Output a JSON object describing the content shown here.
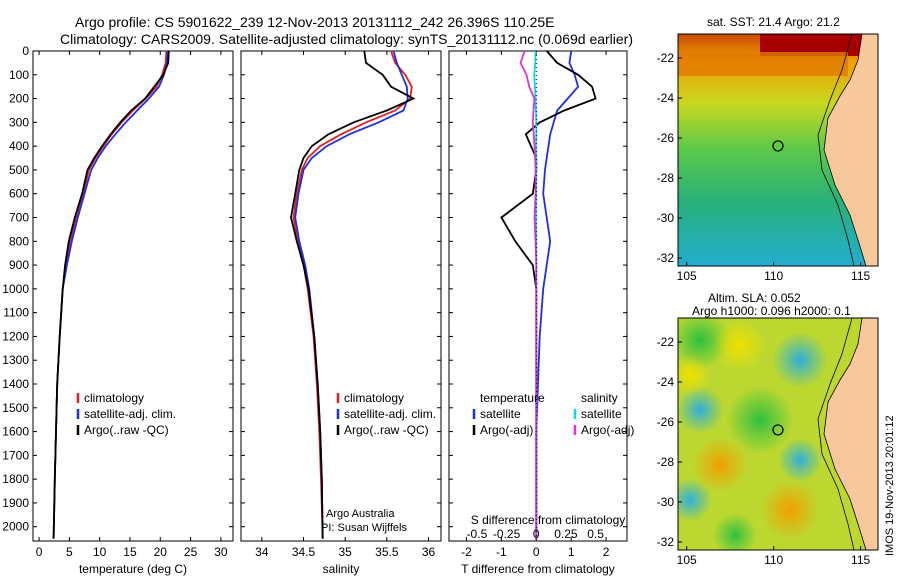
{
  "header": {
    "title_line1": "Argo profile: CS 5901622_239 12-Nov-2013 20131112_242 26.396S 110.25E",
    "title_line2": "Climatology: CARS2009. Satellite-adjusted climatology: synTS_20131112.nc (0.069d earlier)"
  },
  "colors": {
    "climatology": "#e02020",
    "satellite": "#1f2fe0",
    "argo": "#000000",
    "sat_salinity": "#00e0f0",
    "argo_salinity_adj": "#e030e0"
  },
  "chart_data": [
    {
      "type": "line",
      "name": "temperature-profile",
      "xlabel": "temperature (deg C)",
      "ylabel": "",
      "xlim": [
        -1,
        32
      ],
      "ylim": [
        2060,
        0
      ],
      "x_ticks": [
        "0",
        "5",
        "10",
        "15",
        "20",
        "25",
        "30"
      ],
      "y_ticks": [
        "0",
        "100",
        "200",
        "300",
        "400",
        "500",
        "600",
        "700",
        "800",
        "900",
        "1000",
        "1100",
        "1200",
        "1300",
        "1400",
        "1500",
        "1600",
        "1700",
        "1800",
        "1900",
        "2000"
      ],
      "legend": [
        "climatology",
        "satellite-adj. clim.",
        "Argo(..raw -QC)"
      ],
      "legend_position": "lower-center",
      "series": [
        {
          "name": "climatology",
          "color_key": "climatology",
          "x": [
            21.0,
            20.9,
            20.3,
            19.4,
            17.6,
            15.5,
            13.6,
            12.0,
            10.6,
            9.3,
            8.2,
            7.3,
            6.2,
            5.1,
            4.5,
            3.9,
            3.4,
            3.0,
            2.8,
            2.6,
            2.4
          ],
          "y": [
            0,
            50,
            100,
            150,
            200,
            250,
            300,
            350,
            400,
            450,
            500,
            600,
            700,
            800,
            900,
            1000,
            1200,
            1400,
            1600,
            1800,
            2050
          ]
        },
        {
          "name": "satellite-adj. clim.",
          "color_key": "satellite",
          "x": [
            21.2,
            21.1,
            20.6,
            19.8,
            18.1,
            16.2,
            14.3,
            12.6,
            11.0,
            9.7,
            8.6,
            7.5,
            6.4,
            5.4,
            4.6,
            3.9,
            3.4,
            3.0,
            2.8,
            2.6,
            2.4
          ],
          "y": [
            0,
            50,
            100,
            150,
            200,
            250,
            300,
            350,
            400,
            450,
            500,
            600,
            700,
            800,
            900,
            1000,
            1200,
            1400,
            1600,
            1800,
            2050
          ]
        },
        {
          "name": "Argo(..raw -QC)",
          "color_key": "argo",
          "x": [
            21.4,
            21.3,
            20.5,
            19.0,
            17.5,
            15.2,
            13.4,
            11.8,
            10.4,
            9.1,
            8.0,
            7.1,
            5.9,
            4.9,
            4.3,
            3.9,
            3.4,
            3.0,
            2.8,
            2.6,
            2.4
          ],
          "y": [
            0,
            50,
            100,
            150,
            200,
            250,
            300,
            350,
            400,
            450,
            500,
            600,
            700,
            800,
            900,
            1000,
            1200,
            1400,
            1600,
            1800,
            2050
          ]
        }
      ]
    },
    {
      "type": "line",
      "name": "salinity-profile",
      "xlabel": "salinity",
      "xlim": [
        33.75,
        36.15
      ],
      "ylim": [
        2060,
        0
      ],
      "x_ticks": [
        "34",
        "34.5",
        "35",
        "35.5",
        "36"
      ],
      "legend": [
        "climatology",
        "satellite-adj. clim.",
        "Argo(..raw -QC)"
      ],
      "legend_position": "lower-right",
      "annotation": [
        "Argo Australia",
        "PI: Susan Wijffels"
      ],
      "series": [
        {
          "name": "climatology",
          "color_key": "climatology",
          "x": [
            35.55,
            35.6,
            35.72,
            35.8,
            35.78,
            35.6,
            35.25,
            34.95,
            34.7,
            34.55,
            34.48,
            34.42,
            34.38,
            34.43,
            34.5,
            34.55,
            34.62,
            34.66,
            34.69,
            34.71,
            34.73
          ],
          "y": [
            0,
            50,
            100,
            150,
            200,
            250,
            300,
            350,
            400,
            450,
            500,
            600,
            700,
            800,
            900,
            1000,
            1200,
            1400,
            1600,
            1800,
            2050
          ]
        },
        {
          "name": "satellite-adj. clim.",
          "color_key": "satellite",
          "x": [
            35.58,
            35.62,
            35.68,
            35.74,
            35.75,
            35.7,
            35.4,
            35.05,
            34.78,
            34.6,
            34.5,
            34.44,
            34.4,
            34.45,
            34.52,
            34.57,
            34.63,
            34.67,
            34.7,
            34.72,
            34.73
          ],
          "y": [
            0,
            50,
            100,
            150,
            200,
            250,
            300,
            350,
            400,
            450,
            500,
            600,
            700,
            800,
            900,
            1000,
            1200,
            1400,
            1600,
            1800,
            2050
          ]
        },
        {
          "name": "Argo(..raw -QC)",
          "color_key": "argo",
          "x": [
            35.23,
            35.25,
            35.45,
            35.55,
            35.82,
            35.5,
            35.1,
            34.8,
            34.6,
            34.5,
            34.45,
            34.4,
            34.35,
            34.42,
            34.5,
            34.56,
            34.63,
            34.67,
            34.7,
            34.72,
            34.73
          ],
          "y": [
            0,
            50,
            100,
            150,
            200,
            250,
            300,
            350,
            400,
            450,
            500,
            600,
            700,
            800,
            900,
            1000,
            1200,
            1400,
            1600,
            1800,
            2050
          ]
        }
      ]
    },
    {
      "type": "line",
      "name": "difference-profile",
      "xlabel": "T difference from climatology",
      "top_axis_label": "S difference from climatology",
      "xlim": [
        -2.5,
        2.6
      ],
      "ylim": [
        2060,
        0
      ],
      "x_ticks": [
        "-2",
        "-1",
        "0",
        "1",
        "2"
      ],
      "top_ticks": [
        "-0.5",
        "-0.25",
        "0",
        "0.25",
        "0.5"
      ],
      "legend": [
        "temperature",
        "satellite",
        "Argo(-adj)",
        "salinity",
        "satellite",
        "Argo(-adj)"
      ],
      "legend_position": "lower-center",
      "series": [
        {
          "name": "T satellite",
          "color_key": "satellite",
          "x": [
            1.0,
            0.95,
            1.1,
            1.2,
            0.9,
            0.6,
            0.5,
            0.4,
            0.35,
            0.3,
            0.25,
            0.2,
            0.3,
            0.4,
            0.3,
            0.2,
            0.1,
            0.05,
            0.0,
            0.0,
            0.0
          ],
          "y": [
            0,
            50,
            100,
            150,
            200,
            250,
            300,
            350,
            400,
            450,
            500,
            600,
            700,
            800,
            900,
            1000,
            1200,
            1400,
            1600,
            1800,
            2050
          ]
        },
        {
          "name": "T Argo(-adj)",
          "color_key": "argo",
          "x": [
            0.3,
            0.6,
            1.2,
            1.6,
            1.7,
            0.8,
            0.1,
            -0.3,
            -0.15,
            0.0,
            0.0,
            -0.1,
            -1.0,
            -0.6,
            -0.1,
            0.0,
            0.0,
            0.0,
            0.0,
            0.0,
            0.0
          ],
          "y": [
            0,
            50,
            100,
            150,
            200,
            250,
            300,
            350,
            400,
            450,
            500,
            600,
            700,
            800,
            900,
            1000,
            1200,
            1400,
            1600,
            1800,
            2050
          ]
        },
        {
          "name": "S satellite",
          "color_key": "sat_salinity",
          "x": [
            -0.02,
            -0.03,
            -0.06,
            -0.04,
            -0.02,
            -0.01,
            0.0,
            0.0,
            -0.01,
            0.0,
            0.0,
            0.0,
            -0.01,
            0.0,
            0.0,
            0.0,
            0.0,
            0.0,
            0.0,
            0.0,
            0.0
          ],
          "y": [
            0,
            50,
            100,
            150,
            200,
            250,
            300,
            350,
            400,
            450,
            500,
            600,
            700,
            800,
            900,
            1000,
            1200,
            1400,
            1600,
            1800,
            2050
          ]
        },
        {
          "name": "S Argo(-adj)",
          "color_key": "argo_salinity_adj",
          "x": [
            -0.33,
            -0.45,
            -0.28,
            -0.2,
            -0.05,
            -0.08,
            -0.1,
            -0.07,
            -0.05,
            -0.03,
            -0.02,
            -0.02,
            -0.05,
            -0.02,
            0.0,
            0.0,
            0.0,
            0.0,
            0.0,
            0.0,
            0.0
          ],
          "y": [
            0,
            50,
            100,
            150,
            200,
            250,
            300,
            350,
            400,
            450,
            500,
            600,
            700,
            800,
            900,
            1000,
            1200,
            1400,
            1600,
            1800,
            2050
          ]
        }
      ]
    },
    {
      "type": "heatmap",
      "name": "sst-map",
      "title": "sat. SST: 21.4 Argo: 21.2",
      "xlim": [
        104.5,
        116
      ],
      "ylim": [
        -32.4,
        -20.8
      ],
      "x_ticks": [
        "105",
        "110",
        "115"
      ],
      "y_ticks": [
        "-22",
        "-24",
        "-26",
        "-28",
        "-30",
        "-32"
      ],
      "marker": {
        "x": 110.25,
        "y": -26.396
      }
    },
    {
      "type": "heatmap",
      "name": "sla-map",
      "title_line1": "Altim. SLA: 0.052",
      "title_line2": "Argo h1000: 0.096 h2000: 0.1",
      "xlim": [
        104.5,
        116
      ],
      "ylim": [
        -32.4,
        -20.8
      ],
      "x_ticks": [
        "105",
        "110",
        "115"
      ],
      "y_ticks": [
        "-22",
        "-24",
        "-26",
        "-28",
        "-30",
        "-32"
      ],
      "marker": {
        "x": 110.25,
        "y": -26.396
      }
    }
  ],
  "side_stamp": "IMOS 19-Nov-2013 20:01:12"
}
